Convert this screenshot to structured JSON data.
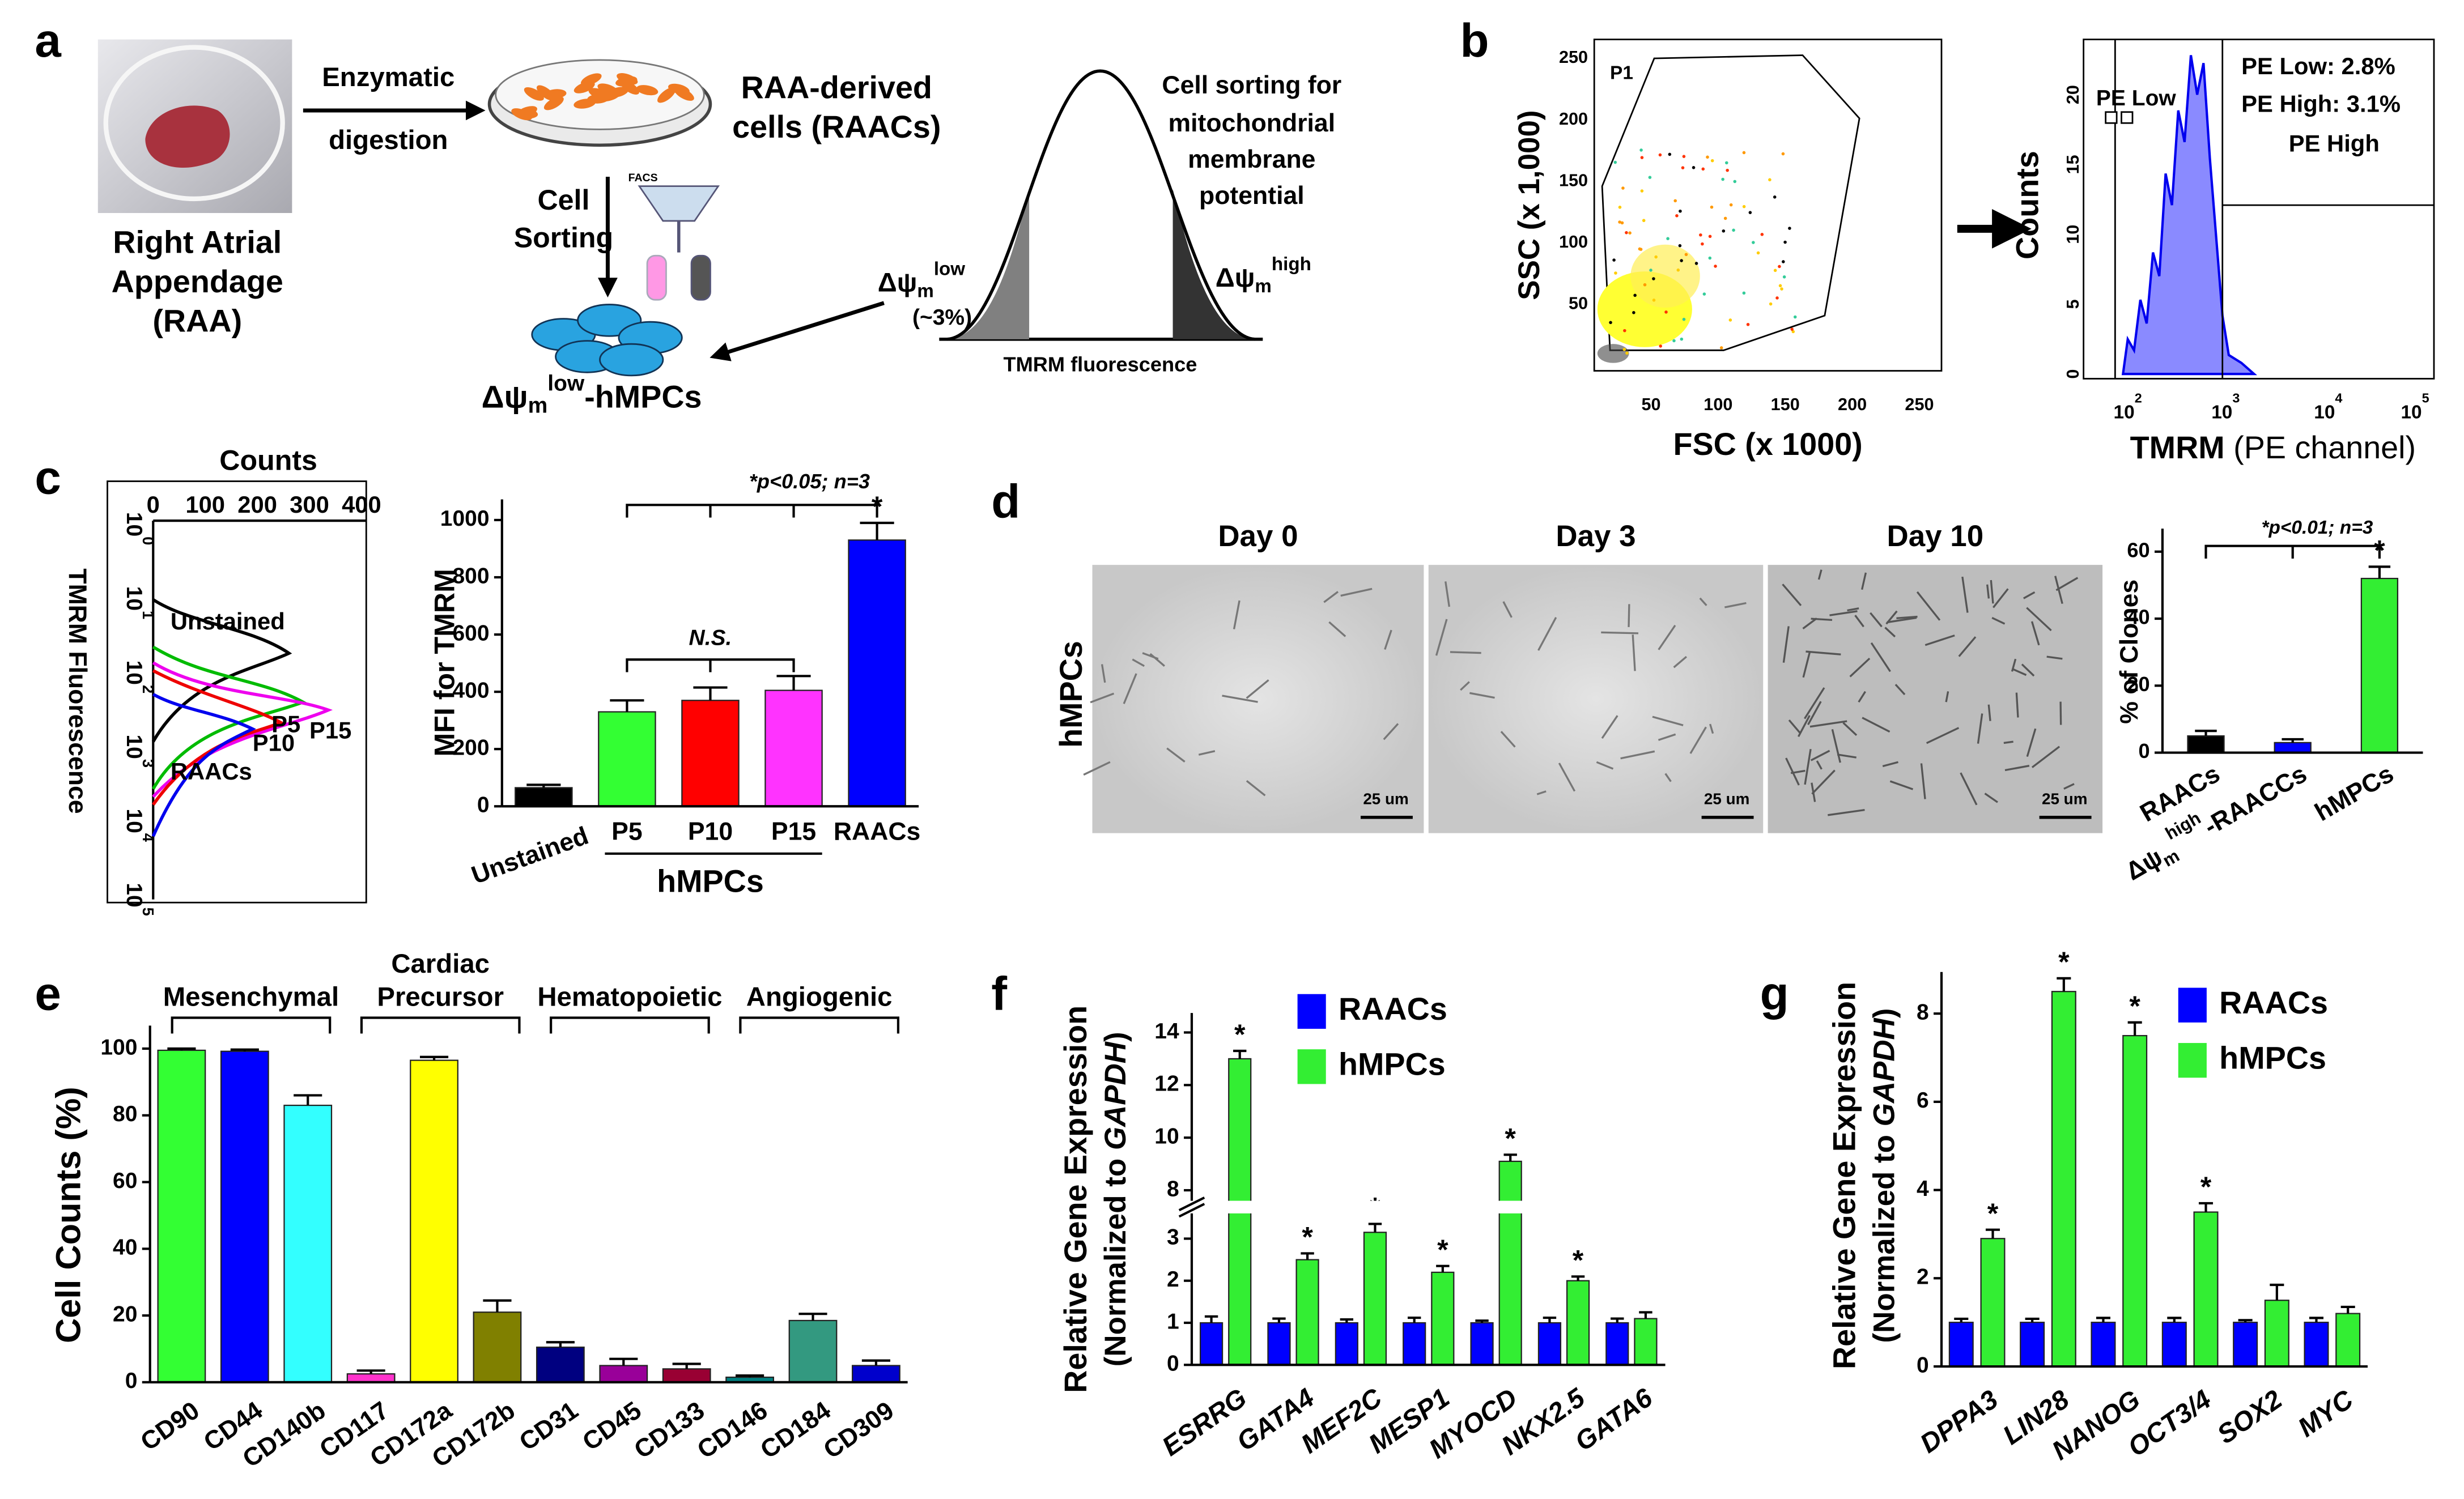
{
  "figure": {
    "letters": [
      "a",
      "b",
      "c",
      "d",
      "e",
      "f",
      "g"
    ],
    "a": {
      "raa": [
        "Right Atrial",
        "Appendage",
        "(RAA)"
      ],
      "digest": [
        "Enzymatic",
        "digestion"
      ],
      "raacs": [
        "RAA-derived",
        "cells (RAACs)"
      ],
      "sorting": [
        "Cell",
        "Sorting"
      ],
      "facs": "FACS",
      "sorting_note": [
        "Cell sorting for",
        "mitochondrial",
        "membrane",
        "potential"
      ],
      "low": {
        "base": "Δψ",
        "sub": "m",
        "sup": "low"
      },
      "low_pct": "(~3%)",
      "high": {
        "base": "Δψ",
        "sub": "m",
        "sup": "high"
      },
      "tmrm": "TMRM fluorescence",
      "result": {
        "base": "Δψ",
        "sub": "m",
        "sup": "low",
        "rest": "-hMPCs"
      }
    },
    "b": {
      "scatter": {
        "ylabel": "SSC (x 1,000)",
        "xlabel": "FSC (x 1000)",
        "ticks": [
          "50",
          "100",
          "150",
          "200",
          "250"
        ],
        "gate": "P1"
      },
      "histogram": {
        "ylabel": "Counts",
        "yticks": [
          "0",
          "5",
          "10",
          "15",
          "20"
        ],
        "xticks": [
          {
            "base": "10",
            "sup": "2"
          },
          {
            "base": "10",
            "sup": "3"
          },
          {
            "base": "10",
            "sup": "4"
          },
          {
            "base": "10",
            "sup": "5"
          }
        ],
        "xlabel": [
          "TMRM",
          " (PE channel)"
        ],
        "gate_low": "PE Low",
        "gate_high": "PE High",
        "stats": [
          "PE Low: 2.8%",
          "PE High: 3.1%"
        ]
      }
    },
    "c": {
      "xlabel": "Counts",
      "xticks": [
        "0",
        "100",
        "200",
        "300",
        "400"
      ],
      "ylabel": "TMRM Fluorescence",
      "yticks": [
        {
          "base": "10",
          "sup": "0"
        },
        {
          "base": "10",
          "sup": "1"
        },
        {
          "base": "10",
          "sup": "2"
        },
        {
          "base": "10",
          "sup": "3"
        },
        {
          "base": "10",
          "sup": "4"
        },
        {
          "base": "10",
          "sup": "5"
        }
      ],
      "curves": [
        "Unstained",
        "P5",
        "P10",
        "P15",
        "RAACs"
      ]
    },
    "d": {
      "row": "hMPCs",
      "days": [
        "Day 0",
        "Day 3",
        "Day 10"
      ],
      "scale": "25 um"
    }
  },
  "chart_data": [
    {
      "type": "bar",
      "ylabel": "MFI for TMRM",
      "categories": [
        "Unstained",
        "P5",
        "P10",
        "P15",
        "RAACs"
      ],
      "values": [
        65,
        330,
        370,
        405,
        930
      ],
      "errors": [
        10,
        40,
        45,
        50,
        60
      ],
      "colors": [
        "#000000",
        "#33ff33",
        "#ff0000",
        "#ff33ff",
        "#0000ff"
      ],
      "labels": [
        null,
        null,
        null,
        null,
        "*"
      ],
      "ylim": [
        0,
        1050
      ],
      "yticks": [
        0,
        200,
        400,
        600,
        800,
        1000
      ],
      "significance": "*p<0.05; n=3",
      "ns": "N.S.",
      "group_label": "hMPCs"
    },
    {
      "type": "bar",
      "ylabel": "% of Clones",
      "categories": [
        "RAACs",
        {
          "base": "Δψ",
          "sub": "m",
          "sup": "high",
          "rest": "-RAACCs"
        },
        "hMPCs"
      ],
      "values": [
        5,
        3,
        52
      ],
      "errors": [
        1.5,
        1,
        3.5
      ],
      "colors": [
        "#000000",
        "#0000ff",
        "#33ee33"
      ],
      "labels": [
        null,
        null,
        "*"
      ],
      "ylim": [
        0,
        65
      ],
      "yticks": [
        0,
        20,
        40,
        60
      ],
      "significance": "*p<0.01; n=3"
    },
    {
      "type": "bar",
      "ylabel": "Cell Counts (%)",
      "categories": [
        "CD90",
        "CD44",
        "CD140b",
        "CD117",
        "CD172a",
        "CD172b",
        "CD31",
        "CD45",
        "CD133",
        "CD146",
        "CD184",
        "CD309"
      ],
      "values": [
        99.5,
        99.2,
        83,
        2.5,
        96.5,
        21,
        10.5,
        5,
        4,
        1.5,
        18.5,
        5
      ],
      "errors": [
        0.5,
        0.5,
        3,
        1,
        1,
        3.5,
        1.5,
        2,
        1.5,
        0.5,
        2,
        1.5
      ],
      "colors": [
        "#33ff33",
        "#0000ff",
        "#33ffff",
        "#ff33cc",
        "#ffff00",
        "#808000",
        "#000080",
        "#990099",
        "#990033",
        "#008080",
        "#339980",
        "#0000cc"
      ],
      "groups": [
        [
          "Mesenchymal"
        ],
        [
          "Cardiac",
          "Precursor"
        ],
        [
          "Hematopoietic"
        ],
        [
          "Angiogenic"
        ]
      ],
      "ylim": [
        0,
        105
      ],
      "yticks": [
        0,
        20,
        40,
        60,
        80,
        100
      ]
    },
    {
      "type": "bar",
      "ylabel": "Relative Gene Expression",
      "ylabel2": [
        "(Normalized to ",
        "GAPDH",
        ")"
      ],
      "categories": [
        "ESRRG",
        "GATA4",
        "MEF2C",
        "MESP1",
        "MYOCD",
        "NKX2.5",
        "GATA6"
      ],
      "series": [
        {
          "name": "RAACs",
          "color": "#0000ff",
          "values": [
            1,
            1,
            1,
            1,
            1,
            1,
            1
          ],
          "errors": [
            0.15,
            0.1,
            0.08,
            0.12,
            0.05,
            0.12,
            0.1
          ]
        },
        {
          "name": "hMPCs",
          "color": "#33ee33",
          "values": [
            13,
            2.5,
            3.15,
            2.2,
            9.1,
            2.0,
            1.1
          ],
          "errors": [
            0.3,
            0.15,
            0.2,
            0.15,
            0.25,
            0.1,
            0.15
          ],
          "labels": [
            "*",
            "*",
            "*",
            "*",
            "*",
            "*",
            null
          ]
        }
      ],
      "ylim": [
        0,
        14.5
      ],
      "y_break": [
        3.6,
        7.6
      ],
      "yticks": [
        0,
        1,
        2,
        3,
        8,
        10,
        12,
        14
      ],
      "legend": "upper left"
    },
    {
      "type": "bar",
      "ylabel": "Relative Gene Expression",
      "ylabel2": [
        "(Normalized to ",
        "GAPDH",
        ")"
      ],
      "categories": [
        "DPPA3",
        "LIN28",
        "NANOG",
        "OCT3/4",
        "SOX2",
        "MYC"
      ],
      "series": [
        {
          "name": "RAACs",
          "color": "#0000ff",
          "values": [
            1,
            1,
            1,
            1,
            1,
            1
          ],
          "errors": [
            0.08,
            0.08,
            0.1,
            0.1,
            0.05,
            0.1
          ]
        },
        {
          "name": "hMPCs",
          "color": "#33ee33",
          "values": [
            2.9,
            8.5,
            7.5,
            3.5,
            1.5,
            1.2
          ],
          "errors": [
            0.2,
            0.3,
            0.3,
            0.2,
            0.35,
            0.15
          ],
          "labels": [
            "*",
            "*",
            "*",
            "*",
            null,
            null
          ]
        }
      ],
      "ylim": [
        0,
        8.8
      ],
      "yticks": [
        0,
        2,
        4,
        6,
        8
      ],
      "legend": "upper left"
    }
  ]
}
